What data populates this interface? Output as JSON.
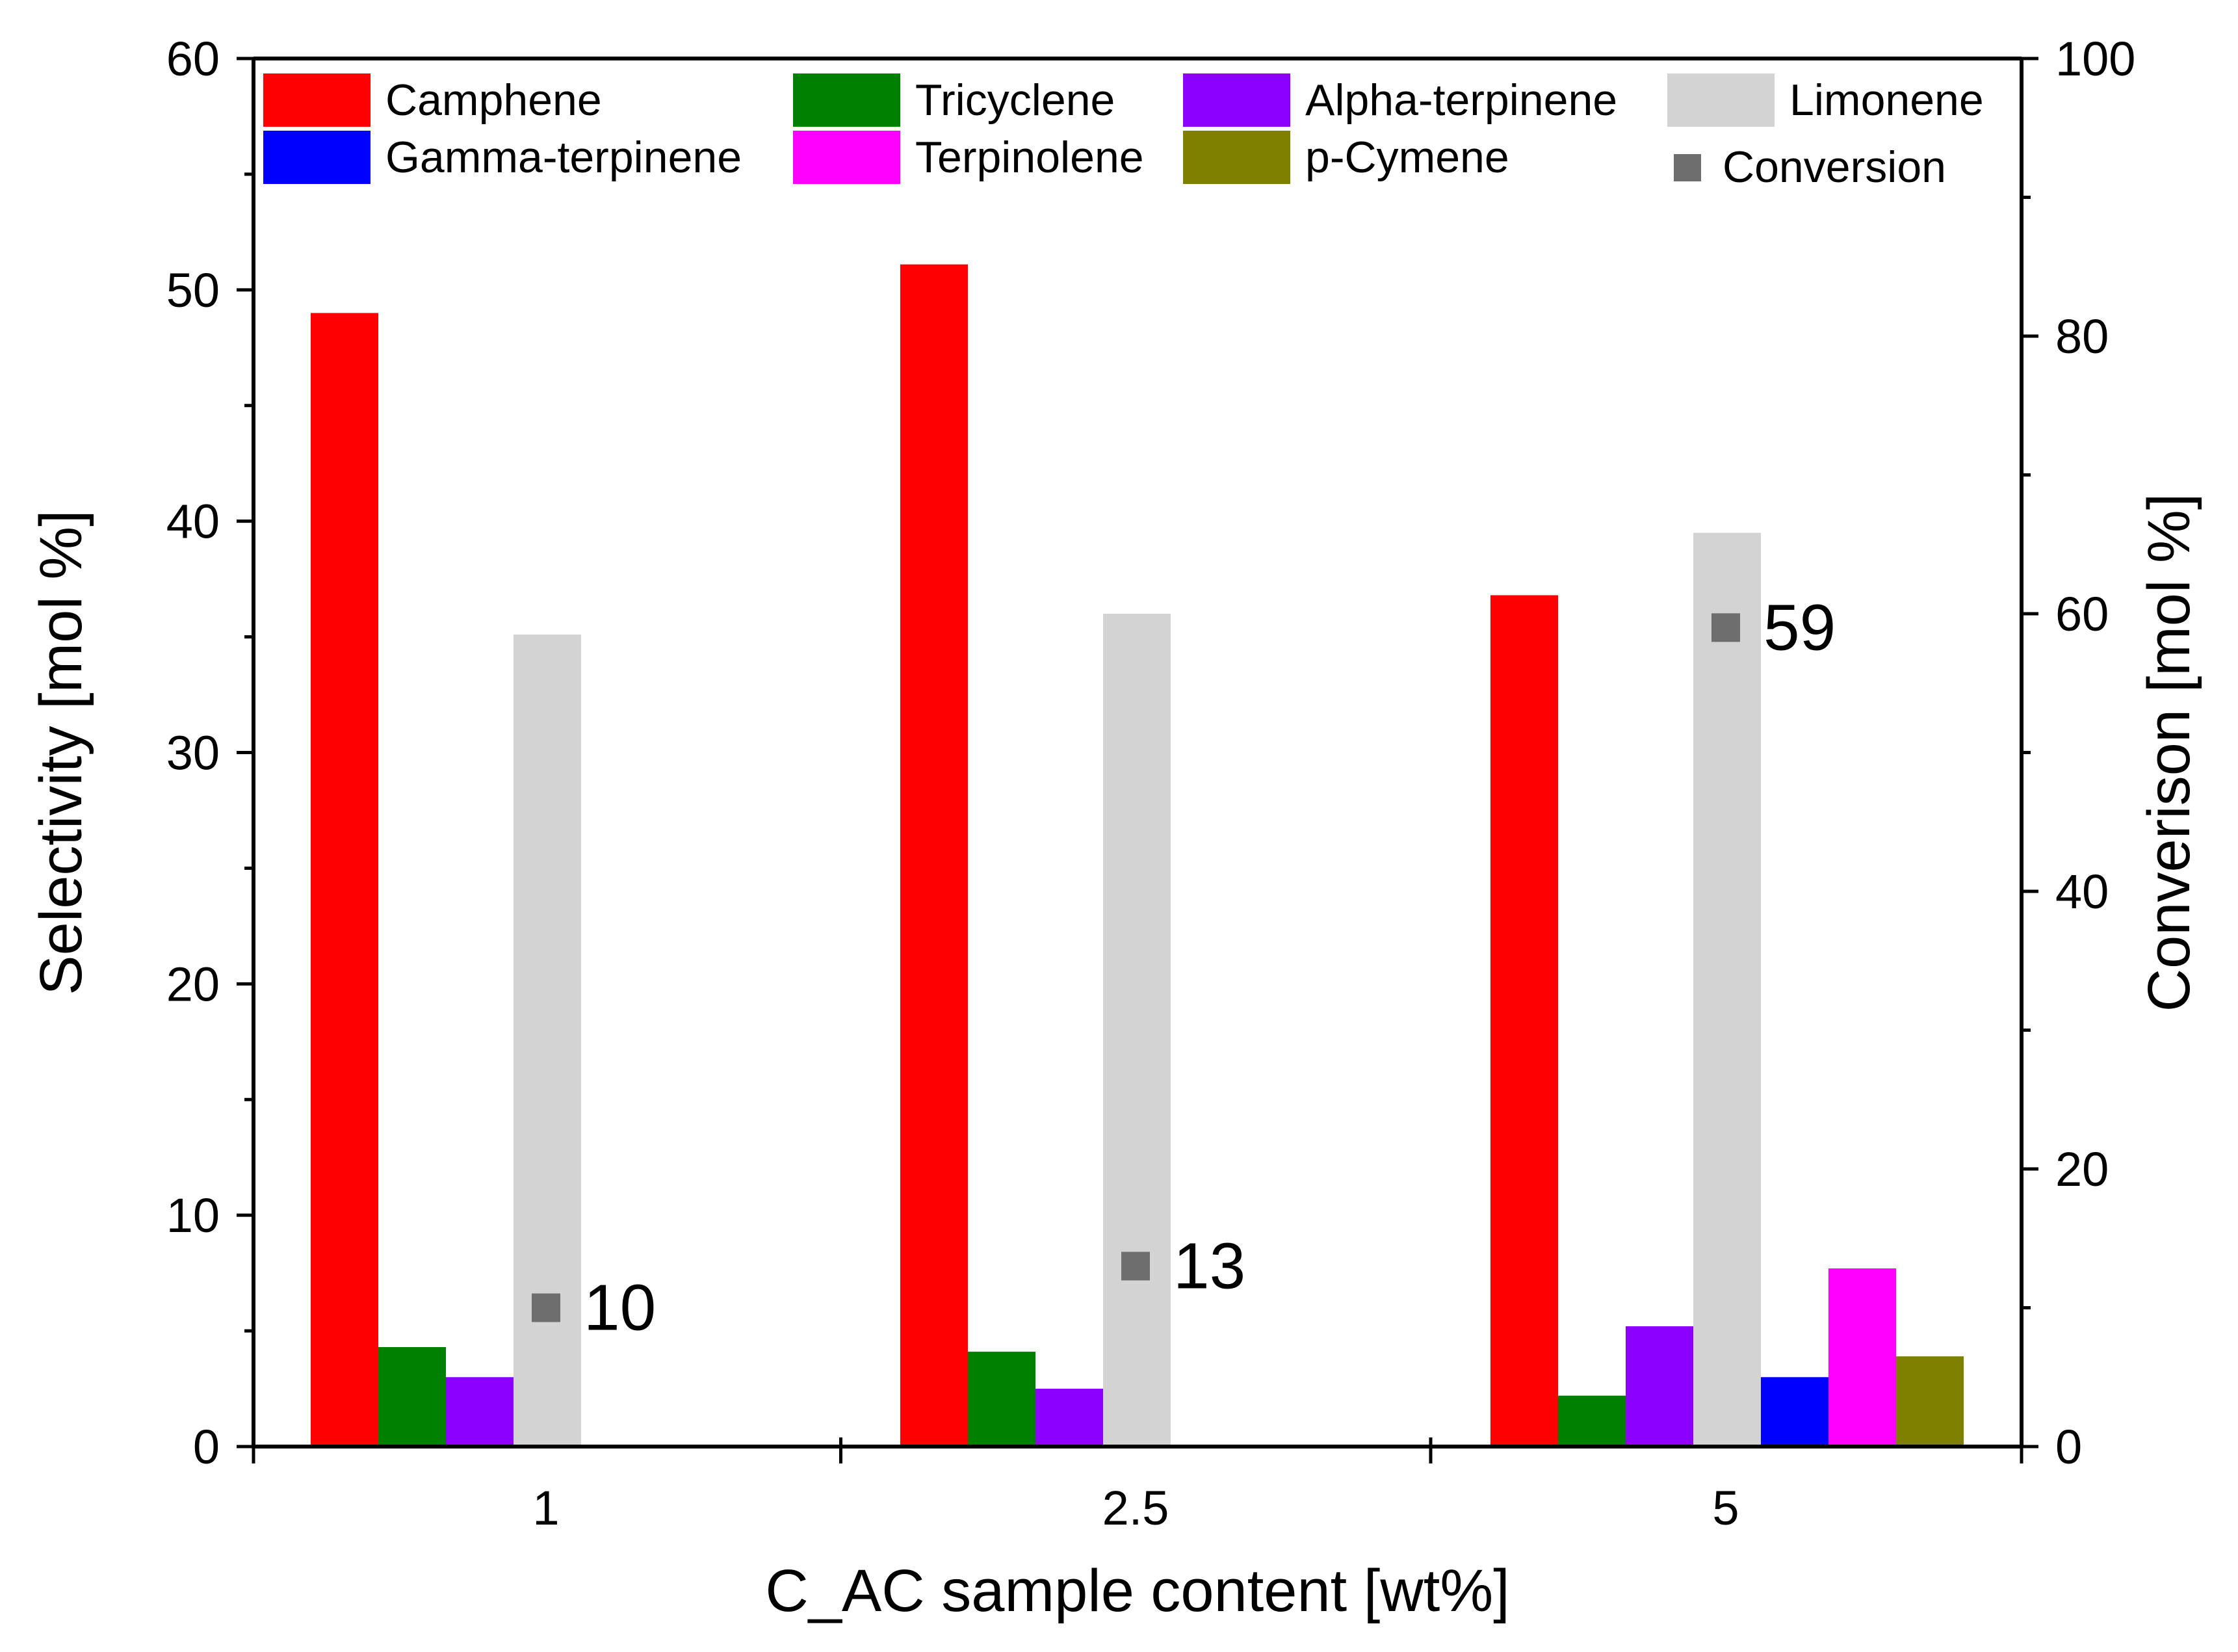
{
  "chart_data": {
    "type": "bar",
    "categories": [
      "1",
      "2.5",
      "5"
    ],
    "xlabel": "C_AC sample content [wt%]",
    "ylabel": "Selectivity [mol %]",
    "y2label": "Converison [mol %]",
    "ylim": [
      0,
      60
    ],
    "y2lim": [
      0,
      100
    ],
    "yticks": [
      "0",
      "10",
      "20",
      "30",
      "40",
      "50",
      "60"
    ],
    "y2ticks": [
      "0",
      "20",
      "40",
      "60",
      "80",
      "100"
    ],
    "series": [
      {
        "name": "Camphene",
        "color": "#ff0000",
        "values": [
          49.0,
          51.1,
          36.8
        ]
      },
      {
        "name": "Tricyclene",
        "color": "#008000",
        "values": [
          4.3,
          4.1,
          2.2
        ]
      },
      {
        "name": "Alpha-terpinene",
        "color": "#8b00ff",
        "values": [
          3.0,
          2.5,
          5.2
        ]
      },
      {
        "name": "Limonene",
        "color": "#d3d3d3",
        "values": [
          35.1,
          36.0,
          39.5
        ]
      },
      {
        "name": "Gamma-terpinene",
        "color": "#0000ff",
        "values": [
          0,
          0,
          3.0
        ]
      },
      {
        "name": "Terpinolene",
        "color": "#ff00ff",
        "values": [
          0,
          0,
          7.7
        ]
      },
      {
        "name": "p-Cymene",
        "color": "#808000",
        "values": [
          0,
          0,
          3.9
        ]
      }
    ],
    "conversion": {
      "name": "Conversion",
      "color": "#6e6e6e",
      "axis": "right",
      "values": [
        10,
        13,
        59
      ],
      "labels": [
        "10",
        "13",
        "59"
      ]
    },
    "legend": {
      "position": "top",
      "row1": [
        "Camphene",
        "Tricyclene",
        "Alpha-terpinene",
        "Limonene"
      ],
      "row2": [
        "Gamma-terpinene",
        "Terpinolene",
        "p-Cymene",
        "Conversion"
      ]
    }
  }
}
